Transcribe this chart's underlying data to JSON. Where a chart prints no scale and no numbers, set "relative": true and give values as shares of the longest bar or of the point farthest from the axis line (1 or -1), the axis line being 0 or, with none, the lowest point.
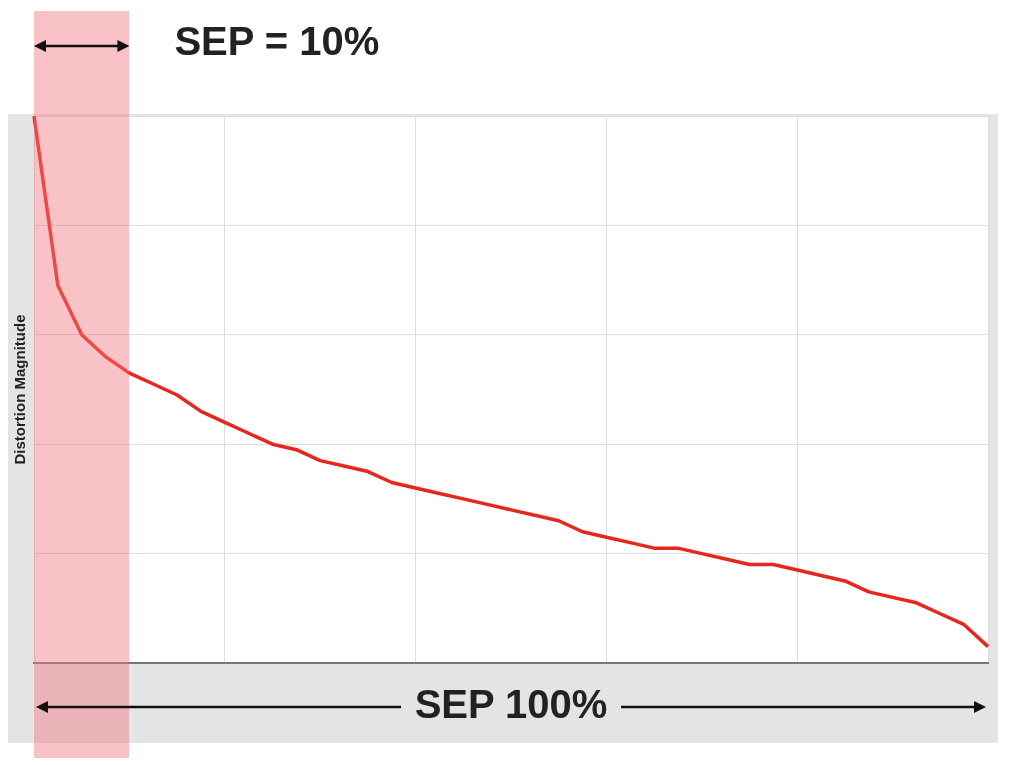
{
  "chart_data": {
    "type": "line",
    "ylabel": "Distortion Magnitude",
    "relative": true,
    "categories": [
      null,
      null,
      null,
      null,
      null,
      null,
      null,
      null,
      null,
      null,
      null,
      null,
      null,
      null,
      null,
      null,
      null,
      null,
      null,
      null,
      null,
      null,
      null,
      null,
      null,
      null,
      null,
      null,
      null,
      null,
      null,
      null,
      null,
      null,
      null,
      null,
      null,
      null,
      null,
      null,
      null
    ],
    "series": [
      {
        "color": "#e8261c",
        "values": [
          1.0,
          0.69,
          0.6,
          0.56,
          0.53,
          0.51,
          0.49,
          0.46,
          0.44,
          0.42,
          0.4,
          0.39,
          0.37,
          0.36,
          0.35,
          0.33,
          0.32,
          0.31,
          0.3,
          0.29,
          0.28,
          0.27,
          0.26,
          0.24,
          0.23,
          0.22,
          0.21,
          0.21,
          0.2,
          0.19,
          0.18,
          0.18,
          0.17,
          0.16,
          0.15,
          0.13,
          0.12,
          0.11,
          0.09,
          0.07,
          0.03
        ]
      }
    ],
    "grid": true,
    "legend": false,
    "marker": "none",
    "line_style": "solid",
    "annotations": [
      "SEP = 10%",
      "SEP 100%"
    ]
  }
}
